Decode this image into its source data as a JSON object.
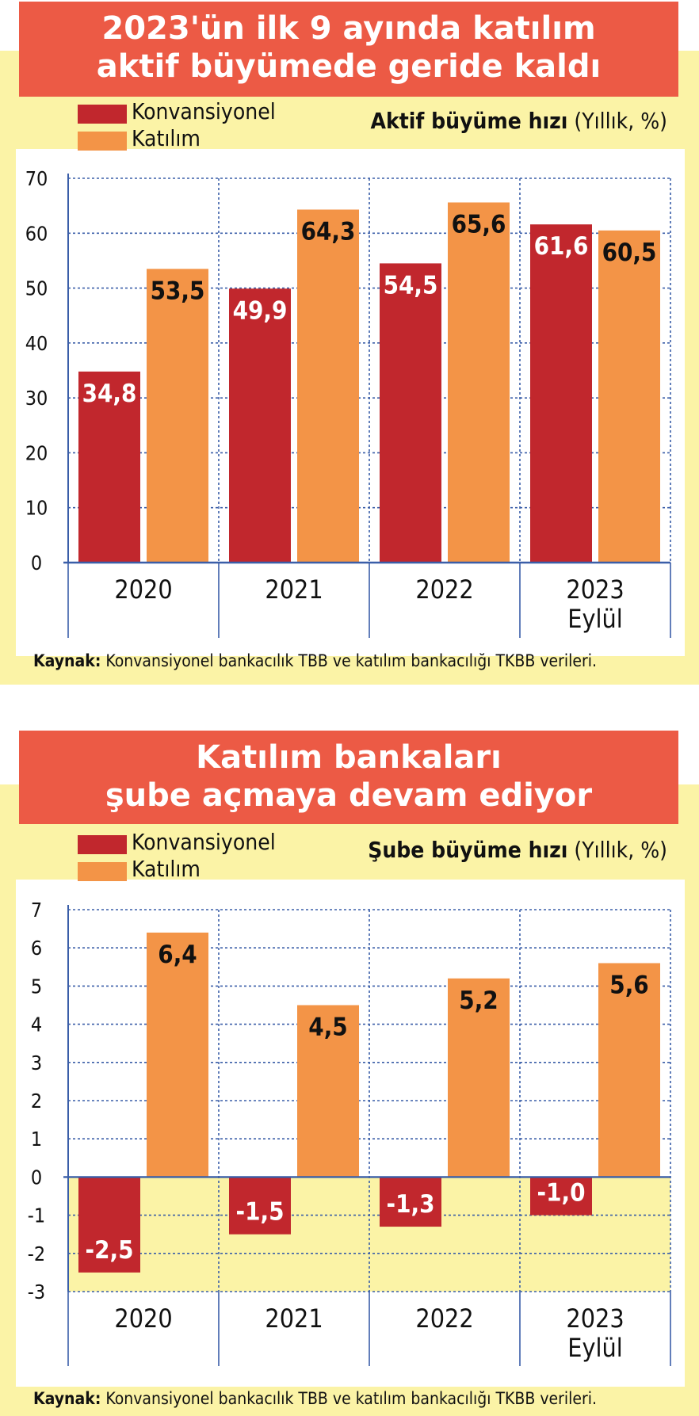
{
  "chart_data": [
    {
      "type": "bar",
      "title_lines": [
        "2023'ün ilk 9 ayında katılım",
        "aktif büyümede geride kaldı"
      ],
      "subtitle_bold": "Aktif büyüme hızı",
      "subtitle_rest": " (Yıllık, %)",
      "categories": [
        {
          "line1": "2020",
          "line2": ""
        },
        {
          "line1": "2021",
          "line2": ""
        },
        {
          "line1": "2022",
          "line2": ""
        },
        {
          "line1": "2023",
          "line2": "Eylül"
        }
      ],
      "series": [
        {
          "name": "Konvansiyonel",
          "color": "#c1272d",
          "values": [
            34.8,
            49.9,
            54.5,
            61.6
          ],
          "labels": [
            "34,8",
            "49,9",
            "54,5",
            "61,6"
          ]
        },
        {
          "name": "Katılım",
          "color": "#f39447",
          "values": [
            53.5,
            64.3,
            65.6,
            60.5
          ],
          "labels": [
            "53,5",
            "64,3",
            "65,6",
            "60,5"
          ]
        }
      ],
      "ylim": [
        0,
        70
      ],
      "yticks": [
        "0",
        "10",
        "20",
        "30",
        "40",
        "50",
        "60",
        "70"
      ],
      "grid": true,
      "source_bold": "Kaynak:",
      "source_rest": " Konvansiyonel bankacılık TBB ve katılım bankacılığı TKBB verileri."
    },
    {
      "type": "bar",
      "title_lines": [
        "Katılım bankaları",
        "şube açmaya devam ediyor"
      ],
      "subtitle_bold": "Şube büyüme hızı",
      "subtitle_rest": " (Yıllık, %)",
      "categories": [
        {
          "line1": "2020",
          "line2": ""
        },
        {
          "line1": "2021",
          "line2": ""
        },
        {
          "line1": "2022",
          "line2": ""
        },
        {
          "line1": "2023",
          "line2": "Eylül"
        }
      ],
      "series": [
        {
          "name": "Konvansiyonel",
          "color": "#c1272d",
          "values": [
            -2.5,
            -1.5,
            -1.3,
            -1.0
          ],
          "labels": [
            "-2,5",
            "-1,5",
            "-1,3",
            "-1,0"
          ]
        },
        {
          "name": "Katılım",
          "color": "#f39447",
          "values": [
            6.4,
            4.5,
            5.2,
            5.6
          ],
          "labels": [
            "6,4",
            "4,5",
            "5,2",
            "5,6"
          ]
        }
      ],
      "ylim": [
        -3,
        7
      ],
      "yticks": [
        "-3",
        "-2",
        "-1",
        "0",
        "1",
        "2",
        "3",
        "4",
        "5",
        "6",
        "7"
      ],
      "grid": true,
      "source_bold": "Kaynak:",
      "source_rest": " Konvansiyonel bankacılık TBB ve katılım bankacılığı TKBB verileri."
    }
  ]
}
